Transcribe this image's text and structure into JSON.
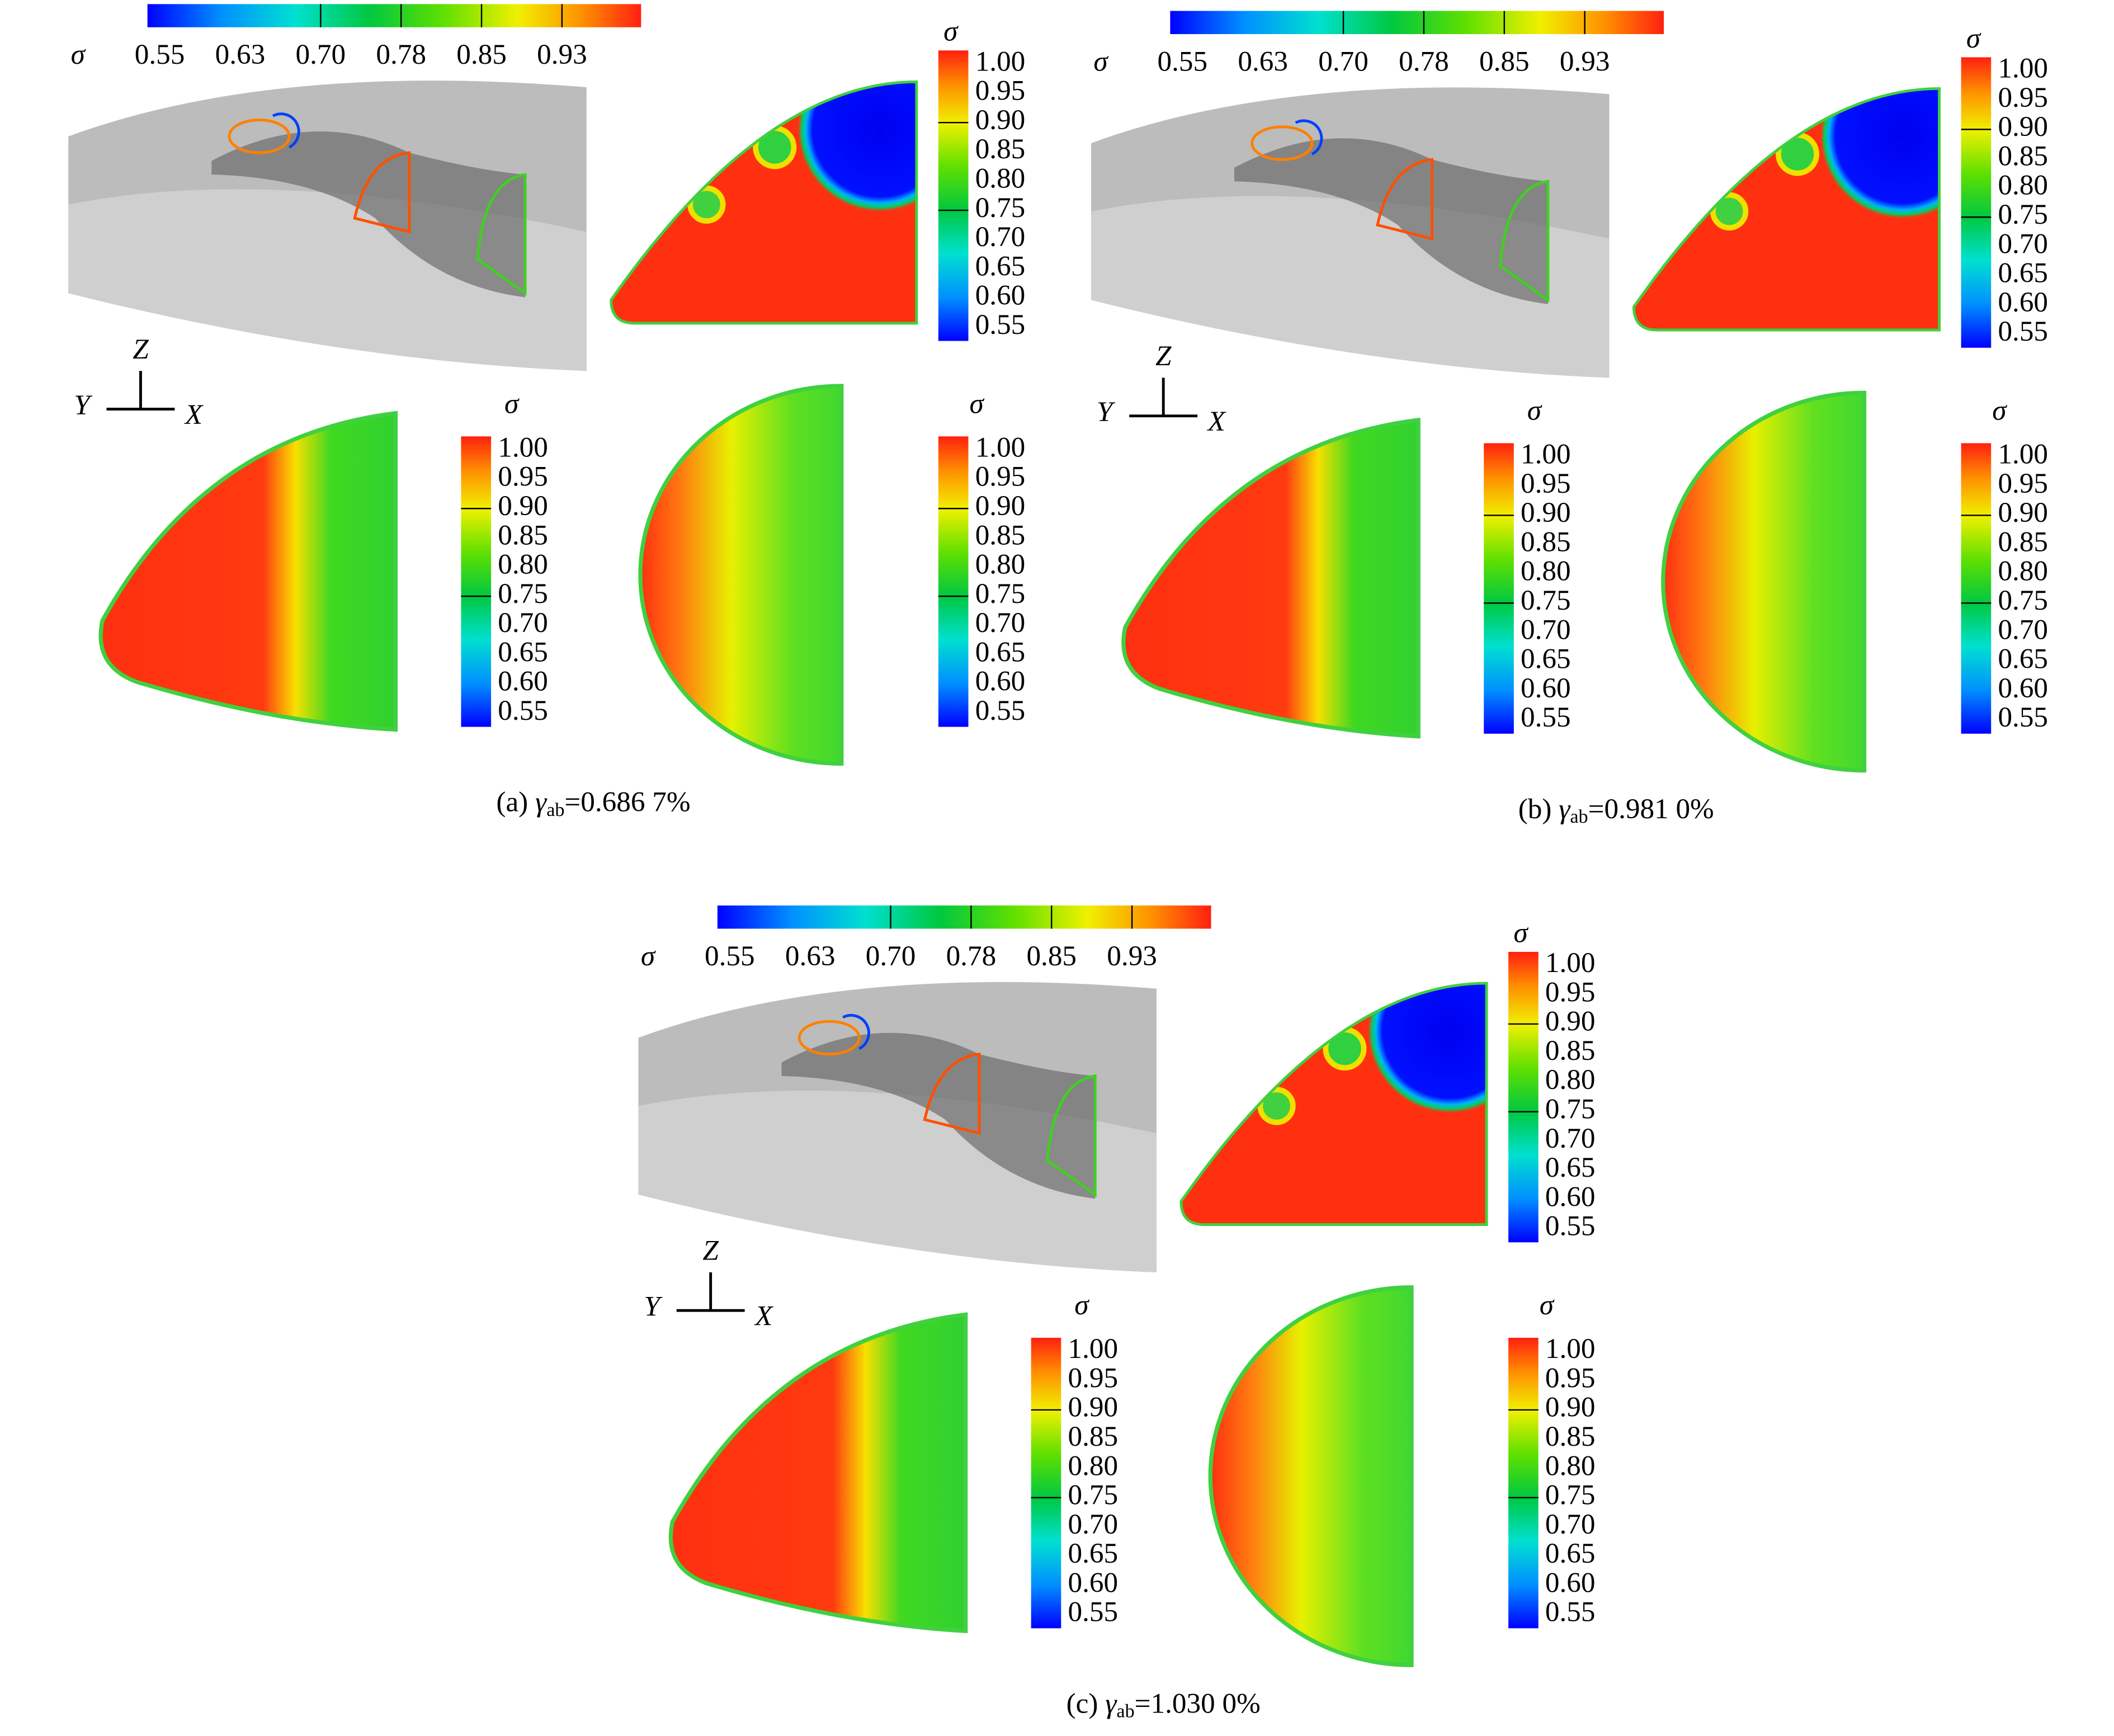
{
  "horizontal_colorbar": {
    "symbol": "σ",
    "labels": [
      "0.55",
      "0.63",
      "0.70",
      "0.78",
      "0.85",
      "0.93"
    ]
  },
  "vertical_colorbar": {
    "symbol": "σ",
    "labels": [
      "1.00",
      "0.95",
      "0.90",
      "0.85",
      "0.80",
      "0.75",
      "0.70",
      "0.65",
      "0.60",
      "0.55"
    ]
  },
  "axes": {
    "z": "Z",
    "y": "Y",
    "x": "X"
  },
  "panels": [
    {
      "caption": {
        "prefix": "(a) ",
        "symbol": "γ",
        "subscript": "ab",
        "value": "=0.686 7%"
      }
    },
    {
      "caption": {
        "prefix": "(b) ",
        "symbol": "γ",
        "subscript": "ab",
        "value": "=0.981 0%"
      }
    },
    {
      "caption": {
        "prefix": "(c) ",
        "symbol": "γ",
        "subscript": "ab",
        "value": "=1.030 0%"
      }
    }
  ]
}
